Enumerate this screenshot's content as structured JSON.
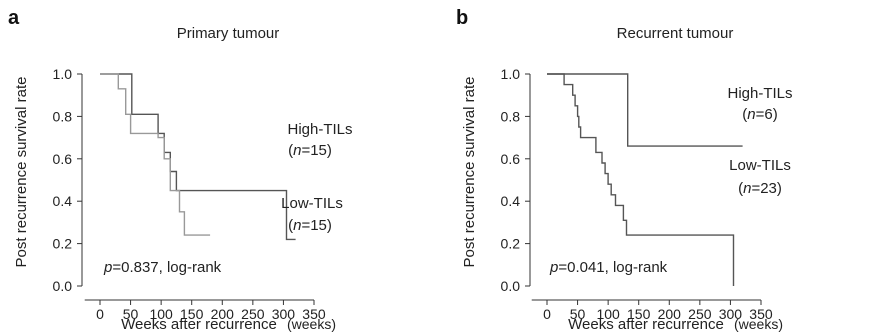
{
  "chart_data": [
    {
      "type": "line",
      "panel_letter": "a",
      "title": "Primary tumour",
      "xlabel": "Weeks after recurrence",
      "x_unit": "(weeks)",
      "ylabel": "Post recurrence survival rate",
      "xlim": [
        0,
        350
      ],
      "ylim": [
        0,
        1.0
      ],
      "x_ticks": [
        0,
        50,
        100,
        150,
        200,
        250,
        300,
        350
      ],
      "y_ticks": [
        0.0,
        0.2,
        0.4,
        0.6,
        0.8,
        1.0
      ],
      "x_tick_labels": [
        "0",
        "50",
        "100",
        "150",
        "200",
        "250",
        "300",
        "350"
      ],
      "y_tick_labels": [
        "0.0",
        "0.2",
        "0.4",
        "0.6",
        "0.8",
        "1.0"
      ],
      "grid": false,
      "series": [
        {
          "name": "High-TILs",
          "n_label": "(n=15)",
          "color": "#555555",
          "x": [
            0,
            52,
            52,
            95,
            95,
            105,
            105,
            115,
            115,
            125,
            125,
            305,
            305,
            320
          ],
          "y": [
            1.0,
            1.0,
            0.81,
            0.81,
            0.72,
            0.72,
            0.63,
            0.63,
            0.54,
            0.54,
            0.45,
            0.45,
            0.22,
            0.22
          ]
        },
        {
          "name": "Low-TILs",
          "n_label": "(n=15)",
          "color": "#999999",
          "x": [
            0,
            30,
            30,
            42,
            42,
            50,
            50,
            95,
            95,
            105,
            105,
            115,
            115,
            130,
            130,
            138,
            138,
            180
          ],
          "y": [
            1.0,
            1.0,
            0.93,
            0.93,
            0.81,
            0.81,
            0.72,
            0.72,
            0.7,
            0.7,
            0.6,
            0.6,
            0.45,
            0.45,
            0.35,
            0.35,
            0.24,
            0.24
          ]
        }
      ],
      "annotation": {
        "p_symbol": "p",
        "text": "=0.837, log-rank"
      }
    },
    {
      "type": "line",
      "panel_letter": "b",
      "title": "Recurrent tumour",
      "xlabel": "Weeks after recurrence",
      "x_unit": "(weeks)",
      "ylabel": "Post recurrence survival rate",
      "xlim": [
        0,
        350
      ],
      "ylim": [
        0,
        1.0
      ],
      "x_ticks": [
        0,
        50,
        100,
        150,
        200,
        250,
        300,
        350
      ],
      "y_ticks": [
        0.0,
        0.2,
        0.4,
        0.6,
        0.8,
        1.0
      ],
      "x_tick_labels": [
        "0",
        "50",
        "100",
        "150",
        "200",
        "250",
        "300",
        "350"
      ],
      "y_tick_labels": [
        "0.0",
        "0.2",
        "0.4",
        "0.6",
        "0.8",
        "1.0"
      ],
      "grid": false,
      "series": [
        {
          "name": "High-TILs",
          "n_label": "(n=6)",
          "color": "#555555",
          "x": [
            0,
            132,
            132,
            320
          ],
          "y": [
            1.0,
            1.0,
            0.66,
            0.66
          ]
        },
        {
          "name": "Low-TILs",
          "n_label": "(n=23)",
          "color": "#555555",
          "x": [
            0,
            28,
            28,
            42,
            42,
            46,
            46,
            50,
            50,
            52,
            52,
            55,
            55,
            80,
            80,
            90,
            90,
            95,
            95,
            100,
            100,
            105,
            105,
            112,
            112,
            125,
            125,
            130,
            130,
            305,
            305
          ],
          "y": [
            1.0,
            1.0,
            0.95,
            0.95,
            0.9,
            0.9,
            0.85,
            0.85,
            0.8,
            0.8,
            0.75,
            0.75,
            0.7,
            0.7,
            0.63,
            0.63,
            0.58,
            0.58,
            0.53,
            0.53,
            0.48,
            0.48,
            0.43,
            0.43,
            0.38,
            0.38,
            0.31,
            0.31,
            0.24,
            0.24,
            0.0
          ]
        }
      ],
      "annotation": {
        "p_symbol": "p",
        "text": "=0.041, log-rank"
      }
    }
  ]
}
